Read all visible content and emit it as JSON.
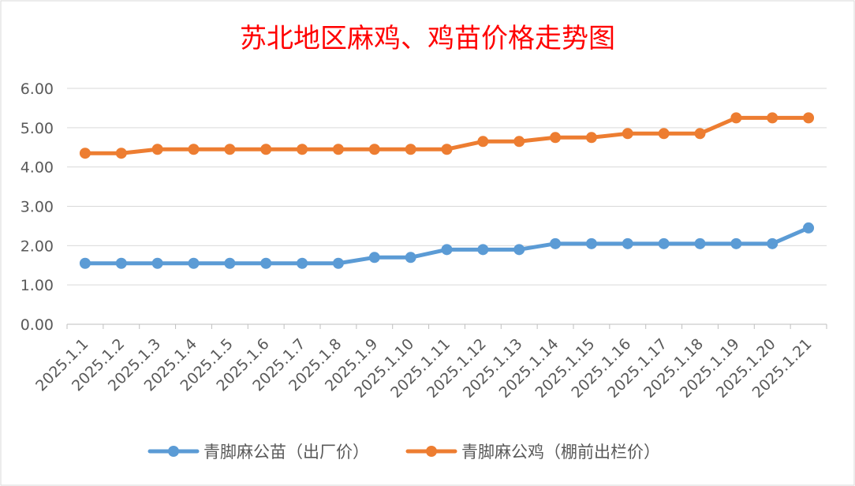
{
  "chart_data": {
    "type": "line",
    "title": "苏北地区麻鸡、鸡苗价格走势图",
    "xlabel": "",
    "ylabel": "",
    "categories": [
      "2025.1.1",
      "2025.1.2",
      "2025.1.3",
      "2025.1.4",
      "2025.1.5",
      "2025.1.6",
      "2025.1.7",
      "2025.1.8",
      "2025.1.9",
      "2025.1.10",
      "2025.1.11",
      "2025.1.12",
      "2025.1.13",
      "2025.1.14",
      "2025.1.15",
      "2025.1.16",
      "2025.1.17",
      "2025.1.18",
      "2025.1.19",
      "2025.1.20",
      "2025.1.21"
    ],
    "ylim": [
      0,
      6
    ],
    "yticks": [
      "0.00",
      "1.00",
      "2.00",
      "3.00",
      "4.00",
      "5.00",
      "6.00"
    ],
    "grid": true,
    "legend_position": "bottom",
    "series": [
      {
        "name": "青脚麻公苗（出厂价）",
        "color": "#5b9bd5",
        "values": [
          1.55,
          1.55,
          1.55,
          1.55,
          1.55,
          1.55,
          1.55,
          1.55,
          1.7,
          1.7,
          1.9,
          1.9,
          1.9,
          2.05,
          2.05,
          2.05,
          2.05,
          2.05,
          2.05,
          2.05,
          2.45
        ]
      },
      {
        "name": "青脚麻公鸡（棚前出栏价）",
        "color": "#ed7d31",
        "values": [
          4.35,
          4.35,
          4.45,
          4.45,
          4.45,
          4.45,
          4.45,
          4.45,
          4.45,
          4.45,
          4.45,
          4.65,
          4.65,
          4.75,
          4.75,
          4.85,
          4.85,
          4.85,
          5.25,
          5.25,
          5.25
        ]
      }
    ]
  }
}
